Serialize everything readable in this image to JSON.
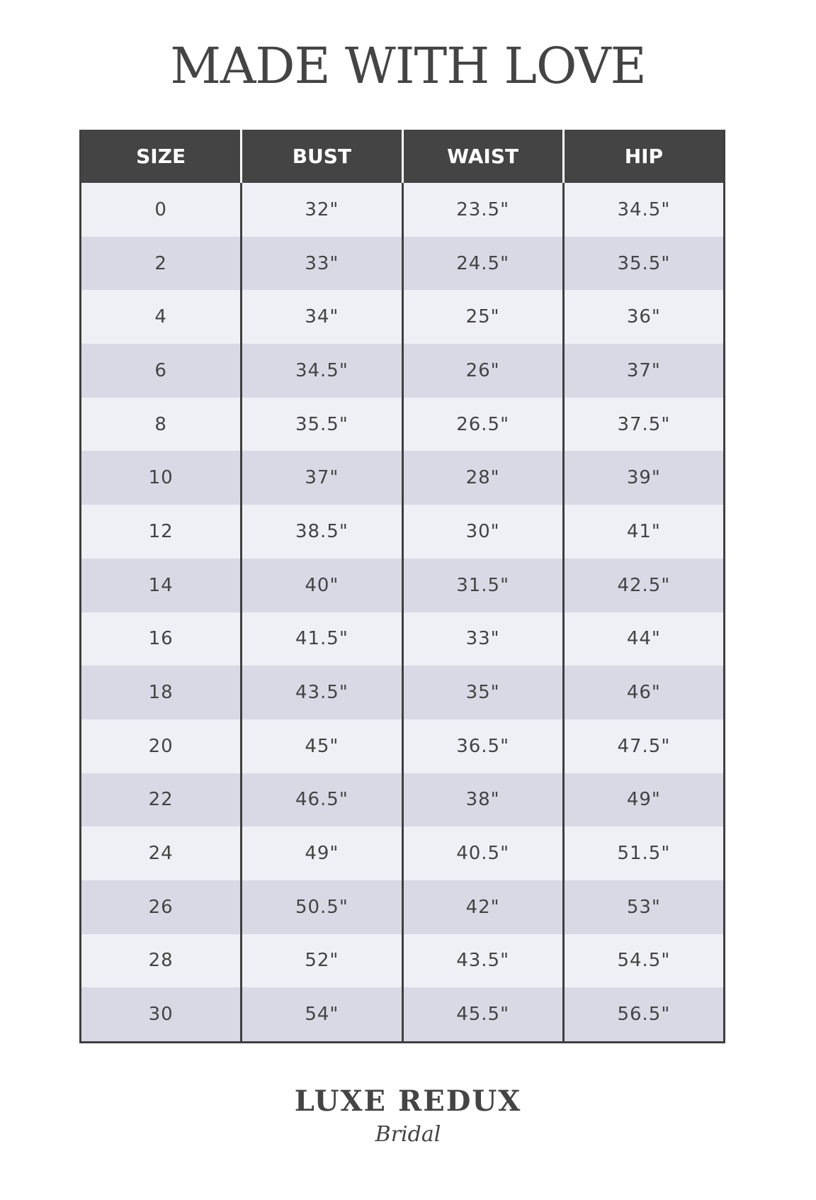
{
  "title": "MADE WITH LOVE",
  "table": {
    "headers": [
      "SIZE",
      "BUST",
      "WAIST",
      "HIP"
    ],
    "rows": [
      [
        "0",
        "32\"",
        "23.5\"",
        "34.5\""
      ],
      [
        "2",
        "33\"",
        "24.5\"",
        "35.5\""
      ],
      [
        "4",
        "34\"",
        "25\"",
        "36\""
      ],
      [
        "6",
        "34.5\"",
        "26\"",
        "37\""
      ],
      [
        "8",
        "35.5\"",
        "26.5\"",
        "37.5\""
      ],
      [
        "10",
        "37\"",
        "28\"",
        "39\""
      ],
      [
        "12",
        "38.5\"",
        "30\"",
        "41\""
      ],
      [
        "14",
        "40\"",
        "31.5\"",
        "42.5\""
      ],
      [
        "16",
        "41.5\"",
        "33\"",
        "44\""
      ],
      [
        "18",
        "43.5\"",
        "35\"",
        "46\""
      ],
      [
        "20",
        "45\"",
        "36.5\"",
        "47.5\""
      ],
      [
        "22",
        "46.5\"",
        "38\"",
        "49\""
      ],
      [
        "24",
        "49\"",
        "40.5\"",
        "51.5\""
      ],
      [
        "26",
        "50.5\"",
        "42\"",
        "53\""
      ],
      [
        "28",
        "52\"",
        "43.5\"",
        "54.5\""
      ],
      [
        "30",
        "54\"",
        "45.5\"",
        "56.5\""
      ]
    ]
  },
  "logo": {
    "main": "LUXE REDUX",
    "sub": "Bridal"
  },
  "colors": {
    "header": "#444444",
    "row_light": "#efeff6",
    "row_dark": "#d9d9e6",
    "text": "#444444"
  }
}
